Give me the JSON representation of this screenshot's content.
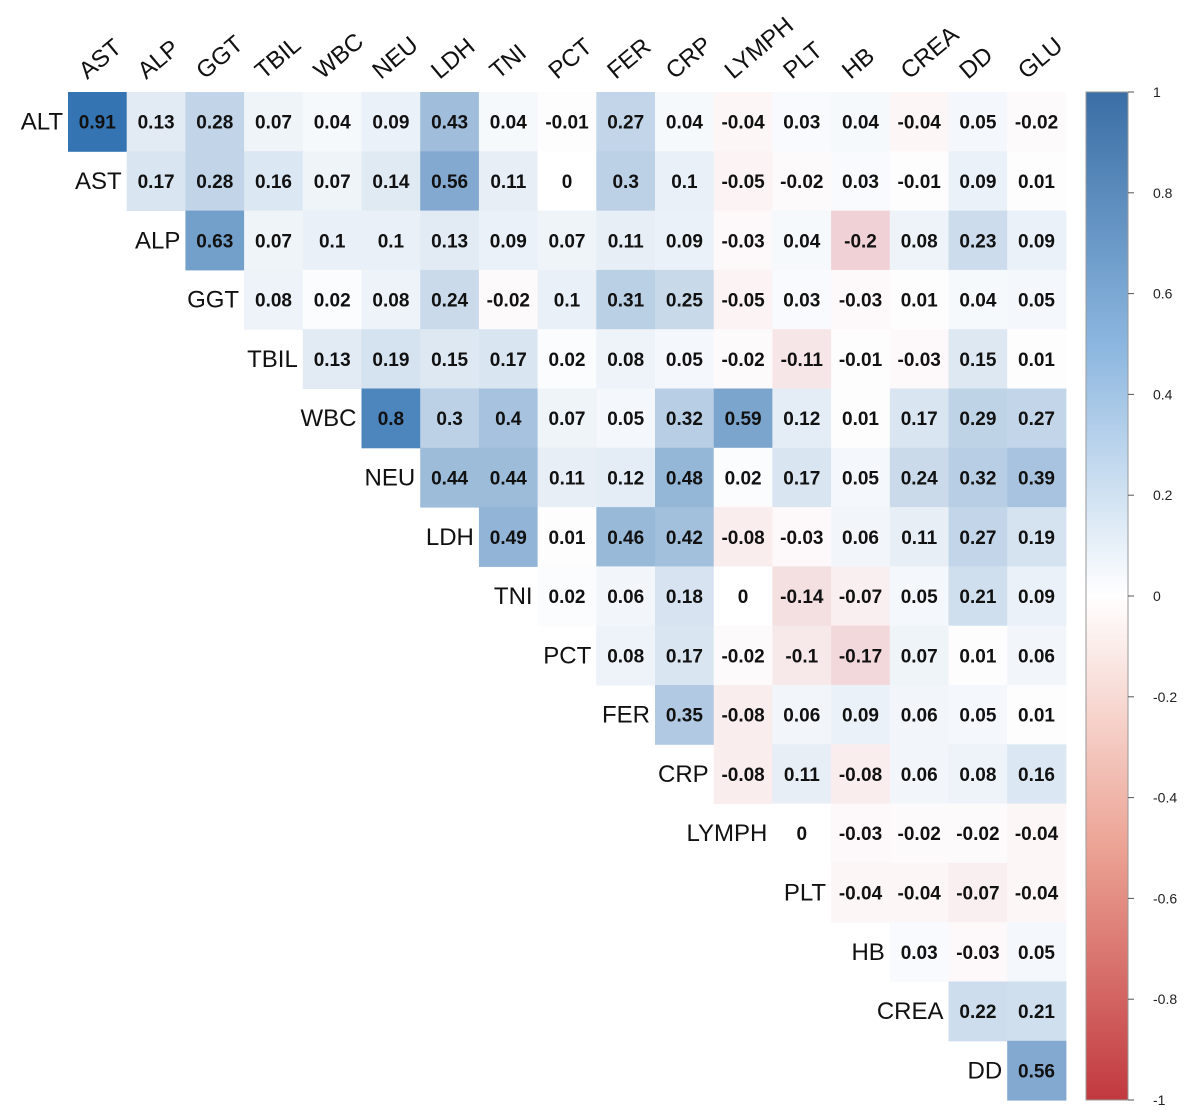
{
  "chart_data": {
    "type": "heatmap",
    "title": "",
    "columns": [
      "AST",
      "ALP",
      "GGT",
      "TBIL",
      "WBC",
      "NEU",
      "LDH",
      "TNI",
      "PCT",
      "FER",
      "CRP",
      "LYMPH",
      "PLT",
      "HB",
      "CREA",
      "DD",
      "GLU"
    ],
    "rows": [
      "ALT",
      "AST",
      "ALP",
      "GGT",
      "TBIL",
      "WBC",
      "NEU",
      "LDH",
      "TNI",
      "PCT",
      "FER",
      "CRP",
      "LYMPH",
      "PLT",
      "HB",
      "CREA",
      "DD"
    ],
    "values": [
      [
        0.91,
        0.13,
        0.28,
        0.07,
        0.04,
        0.09,
        0.43,
        0.04,
        -0.01,
        0.27,
        0.04,
        -0.04,
        0.03,
        0.04,
        -0.04,
        0.05,
        -0.02
      ],
      [
        0.17,
        0.28,
        0.16,
        0.07,
        0.14,
        0.56,
        0.11,
        0,
        0.3,
        0.1,
        -0.05,
        -0.02,
        0.03,
        -0.01,
        0.09,
        0.01
      ],
      [
        0.63,
        0.07,
        0.1,
        0.1,
        0.13,
        0.09,
        0.07,
        0.11,
        0.09,
        -0.03,
        0.04,
        -0.2,
        0.08,
        0.23,
        0.09
      ],
      [
        0.08,
        0.02,
        0.08,
        0.24,
        -0.02,
        0.1,
        0.31,
        0.25,
        -0.05,
        0.03,
        -0.03,
        0.01,
        0.04,
        0.05
      ],
      [
        0.13,
        0.19,
        0.15,
        0.17,
        0.02,
        0.08,
        0.05,
        -0.02,
        -0.11,
        -0.01,
        -0.03,
        0.15,
        0.01
      ],
      [
        0.8,
        0.3,
        0.4,
        0.07,
        0.05,
        0.32,
        0.59,
        0.12,
        0.01,
        0.17,
        0.29,
        0.27
      ],
      [
        0.44,
        0.44,
        0.11,
        0.12,
        0.48,
        0.02,
        0.17,
        0.05,
        0.24,
        0.32,
        0.39
      ],
      [
        0.49,
        0.01,
        0.46,
        0.42,
        -0.08,
        -0.03,
        0.06,
        0.11,
        0.27,
        0.19
      ],
      [
        0.02,
        0.06,
        0.18,
        0,
        -0.14,
        -0.07,
        0.05,
        0.21,
        0.09
      ],
      [
        0.08,
        0.17,
        -0.02,
        -0.1,
        -0.17,
        0.07,
        0.01,
        0.06
      ],
      [
        0.35,
        -0.08,
        0.06,
        0.09,
        0.06,
        0.05,
        0.01
      ],
      [
        -0.08,
        0.11,
        -0.08,
        0.06,
        0.08,
        0.16
      ],
      [
        0,
        -0.03,
        -0.02,
        -0.02,
        -0.04
      ],
      [
        -0.04,
        -0.04,
        -0.07,
        -0.04
      ],
      [
        0.03,
        -0.03,
        0.05
      ],
      [
        0.22,
        0.21
      ],
      [
        0.56
      ]
    ],
    "colorbar": {
      "min": -1,
      "max": 1,
      "ticks": [
        "1",
        "0.8",
        "0.6",
        "0.4",
        "0.2",
        "0",
        "-0.2",
        "-0.4",
        "-0.6",
        "-0.8",
        "-1"
      ],
      "colors": {
        "negative": "#b2182b",
        "neutral": "#ffffff",
        "positive": "#2166ac"
      }
    }
  }
}
